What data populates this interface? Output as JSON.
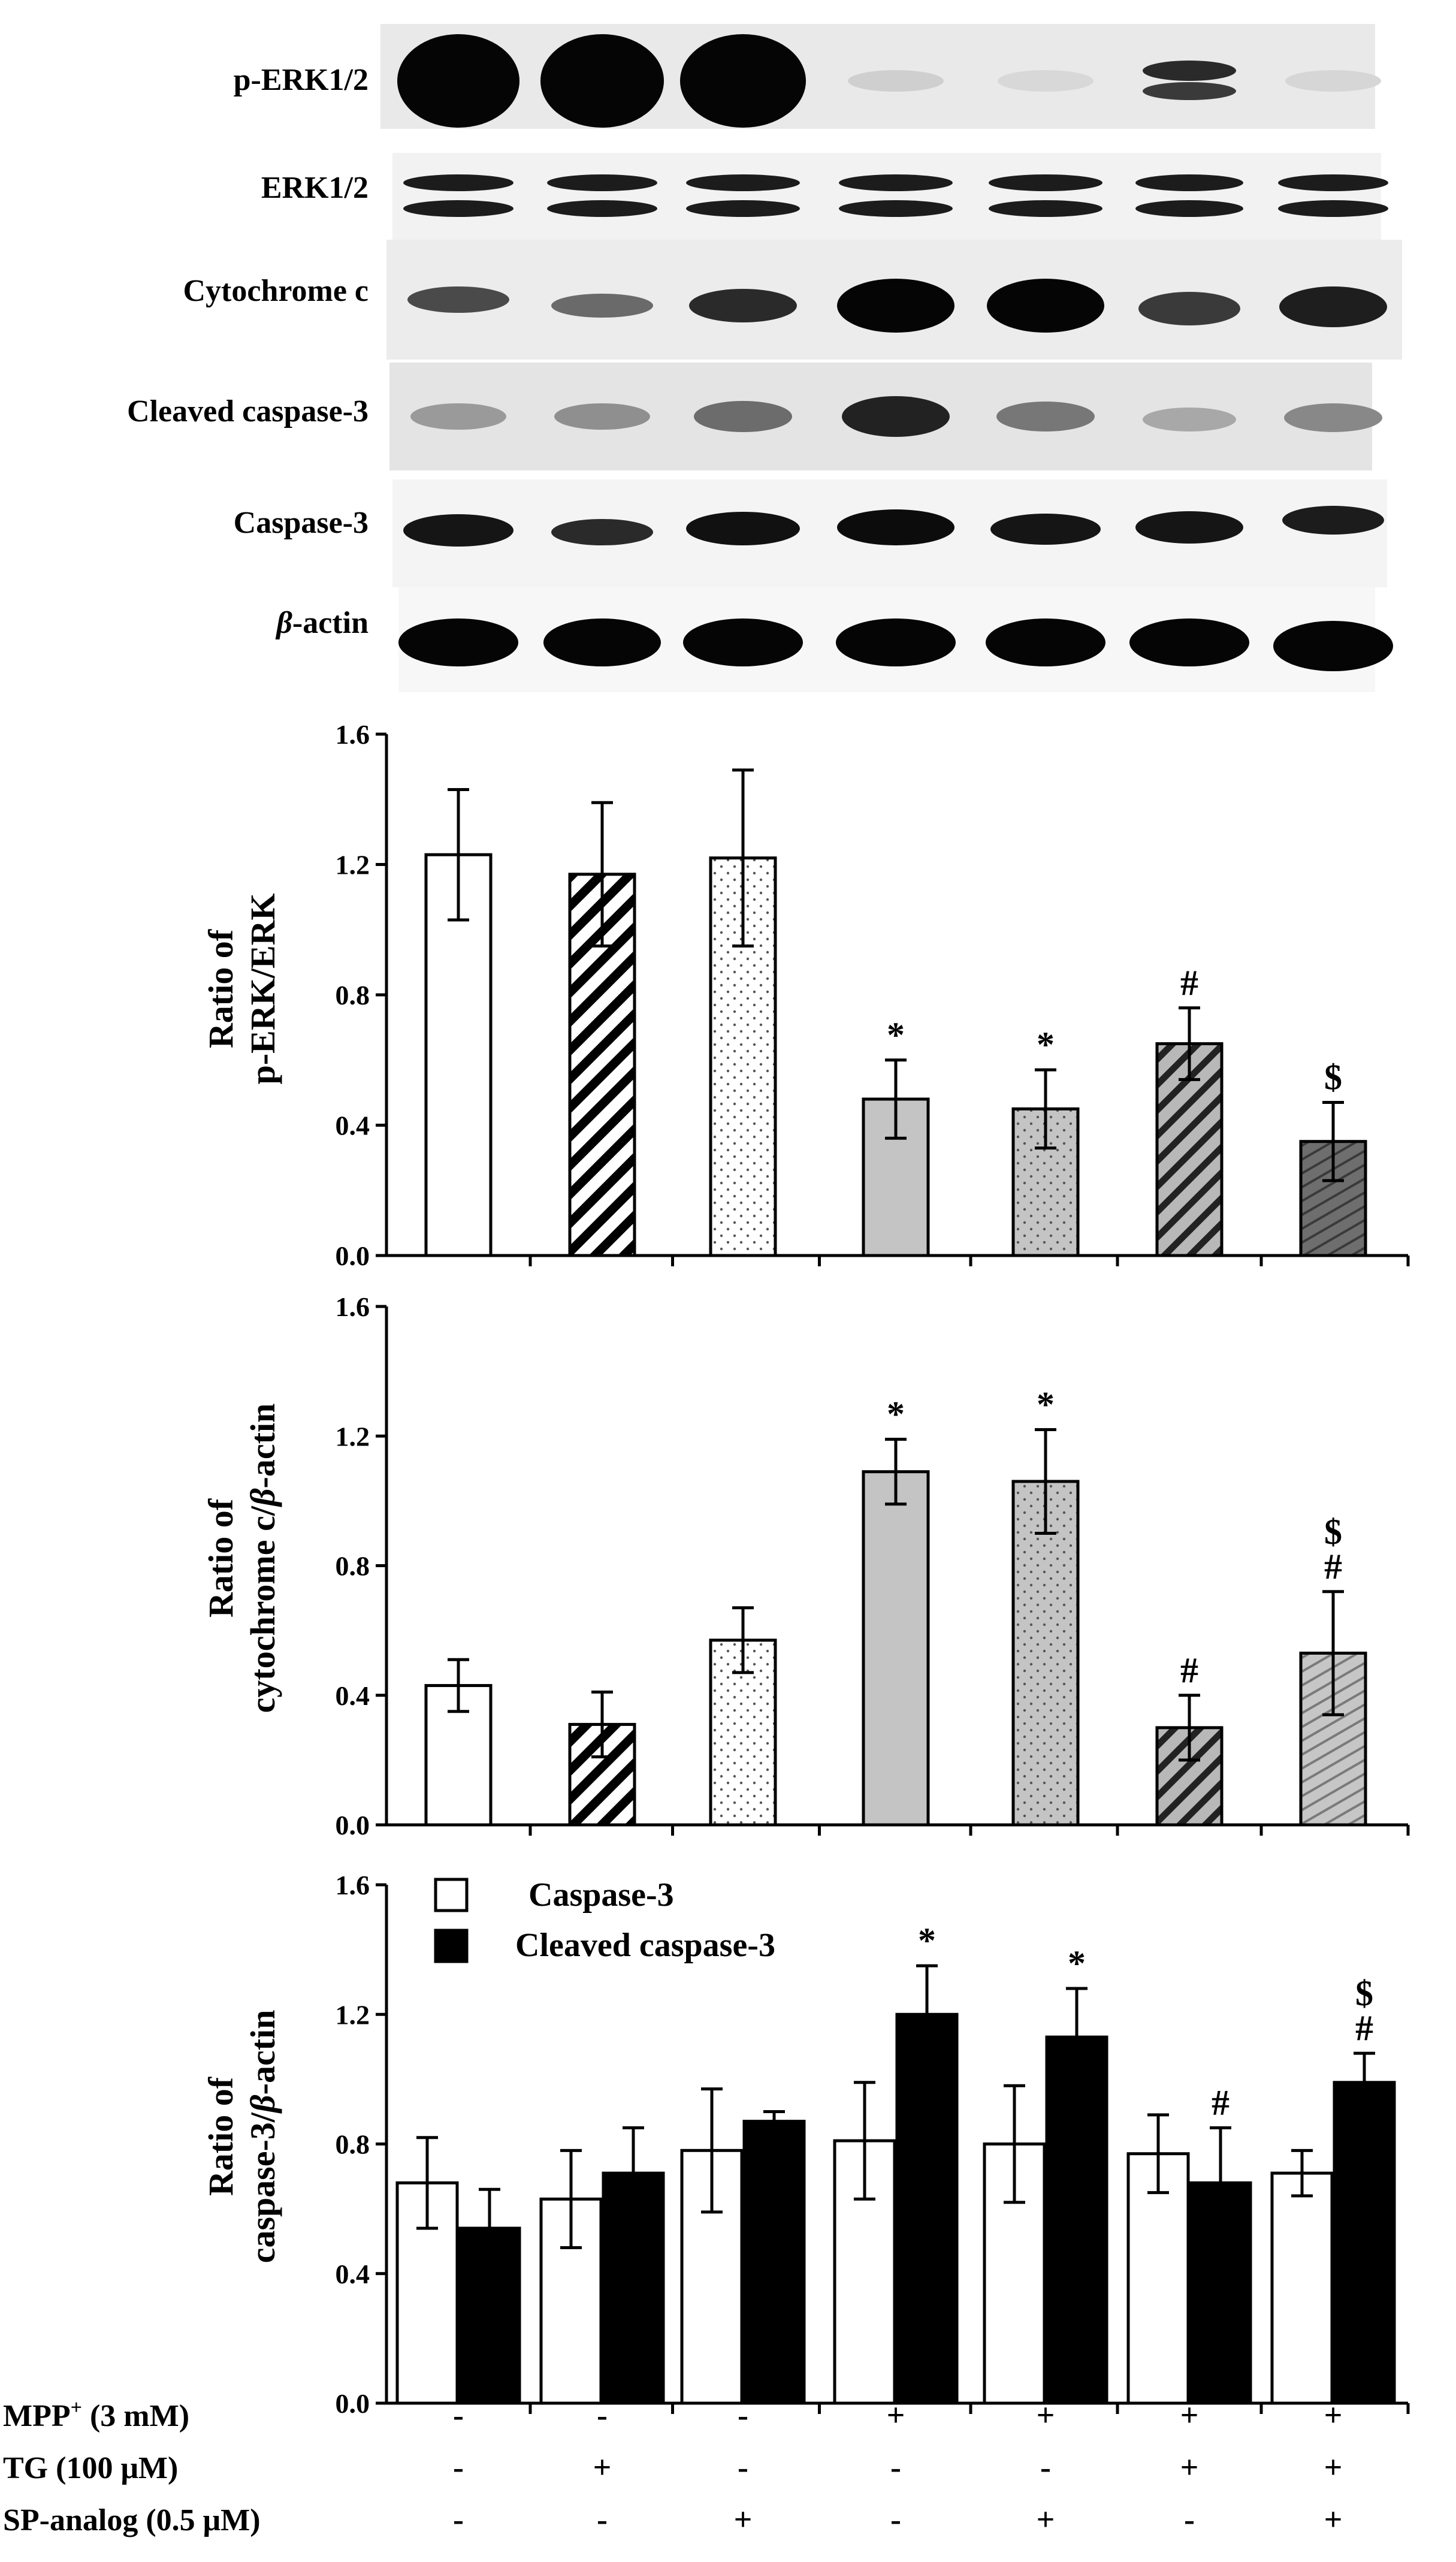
{
  "blot": {
    "rows": [
      {
        "label": "p-ERK1/2"
      },
      {
        "label": "ERK1/2"
      },
      {
        "label": "Cytochrome c"
      },
      {
        "label": "Cleaved caspase-3"
      },
      {
        "label": "Caspase-3"
      },
      {
        "label_symbol": "β",
        "label_rest": "-actin"
      }
    ]
  },
  "chart_data": [
    {
      "type": "bar",
      "ylabel_line1": "Ratio of",
      "ylabel_line2": "p-ERK/ERK",
      "ylim": [
        0,
        1.6
      ],
      "yticks": [
        "0.0",
        "0.4",
        "0.8",
        "1.2",
        "1.6"
      ],
      "series": [
        {
          "values": [
            1.23,
            1.17,
            1.22,
            0.48,
            0.45,
            0.65,
            0.35
          ],
          "errors": [
            0.2,
            0.22,
            0.27,
            0.12,
            0.12,
            0.11,
            0.12
          ],
          "marks": [
            "",
            "",
            "",
            "*",
            "*",
            "#",
            "$"
          ]
        }
      ]
    },
    {
      "type": "bar",
      "ylabel_line1": "Ratio of",
      "ylabel_line2_pre": "cytochrome c/",
      "ylabel_line2_sym": "β",
      "ylabel_line2_post": "-actin",
      "ylim": [
        0,
        1.6
      ],
      "yticks": [
        "0.0",
        "0.4",
        "0.8",
        "1.2",
        "1.6"
      ],
      "series": [
        {
          "values": [
            0.43,
            0.31,
            0.57,
            1.09,
            1.06,
            0.3,
            0.53
          ],
          "errors": [
            0.08,
            0.1,
            0.1,
            0.1,
            0.16,
            0.1,
            0.19
          ],
          "marks": [
            "",
            "",
            "",
            "*",
            "*",
            "#",
            "$\n#"
          ]
        }
      ]
    },
    {
      "type": "bar",
      "ylabel_line1": "Ratio of",
      "ylabel_line2_pre": "caspase-3/",
      "ylabel_line2_sym": "β",
      "ylabel_line2_post": "-actin",
      "ylim": [
        0,
        1.6
      ],
      "yticks": [
        "0.0",
        "0.4",
        "0.8",
        "1.2",
        "1.6"
      ],
      "legend_position": "top-left",
      "series": [
        {
          "name": "Caspase-3",
          "color": "#ffffff",
          "values": [
            0.68,
            0.63,
            0.78,
            0.81,
            0.8,
            0.77,
            0.71
          ],
          "errors": [
            0.14,
            0.15,
            0.19,
            0.18,
            0.18,
            0.12,
            0.07
          ],
          "marks": [
            "",
            "",
            "",
            "",
            "",
            "",
            ""
          ]
        },
        {
          "name": "Cleaved caspase-3",
          "color": "#000000",
          "values": [
            0.54,
            0.71,
            0.87,
            1.2,
            1.13,
            0.68,
            0.99
          ],
          "errors": [
            0.12,
            0.14,
            0.03,
            0.15,
            0.15,
            0.17,
            0.09
          ],
          "marks": [
            "",
            "",
            "",
            "*",
            "*",
            "#",
            "$\n#"
          ]
        }
      ]
    }
  ],
  "treatments": [
    {
      "label_pre": "MPP",
      "label_sup": "+",
      "label_post": " (3 mM)",
      "values": [
        "-",
        "-",
        "-",
        "+",
        "+",
        "+",
        "+"
      ]
    },
    {
      "label_pre": "TG (100 μM)",
      "label_sup": "",
      "label_post": "",
      "values": [
        "-",
        "+",
        "-",
        "-",
        "-",
        "+",
        "+"
      ]
    },
    {
      "label_pre": "SP-analog (0.5 μM)",
      "label_sup": "",
      "label_post": "",
      "values": [
        "-",
        "-",
        "+",
        "-",
        "+",
        "-",
        "+"
      ]
    }
  ]
}
